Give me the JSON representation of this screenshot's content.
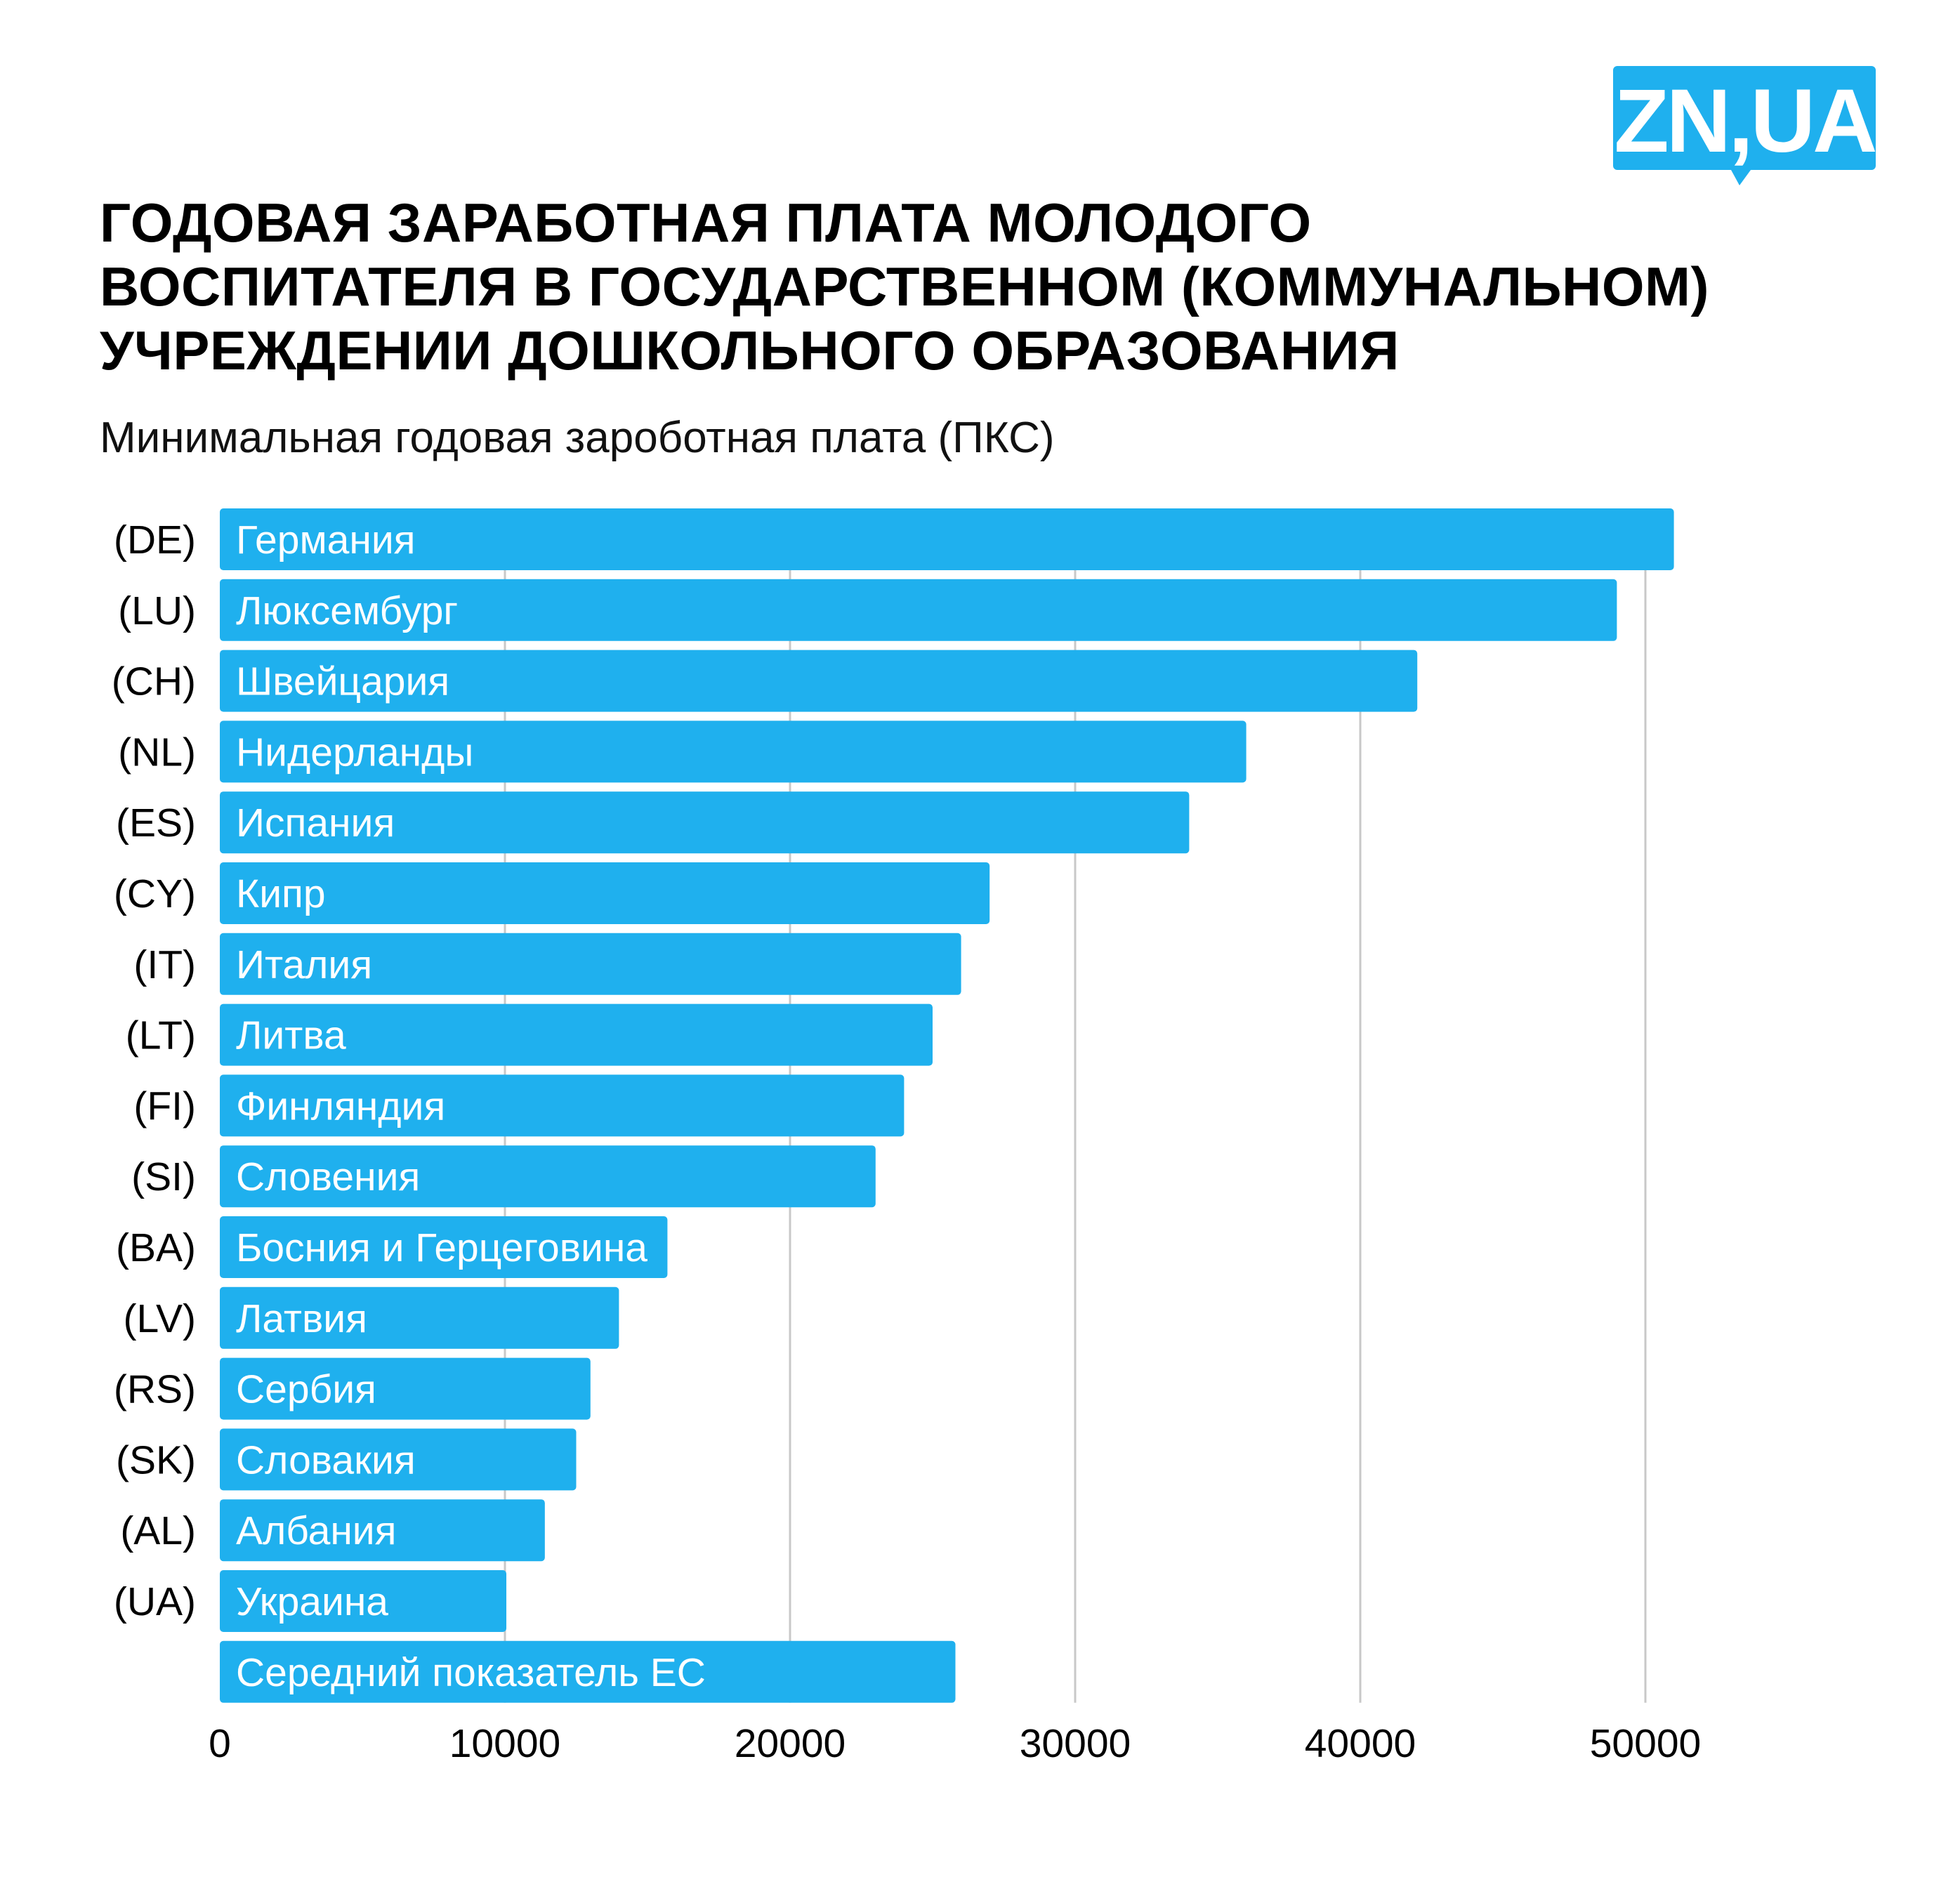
{
  "logo": {
    "text": "ZN,UA",
    "color": "#1fb0ee"
  },
  "title_lines": [
    "ГОДОВАЯ ЗАРАБОТНАЯ ПЛАТА МОЛОДОГО",
    "ВОСПИТАТЕЛЯ В ГОСУДАРСТВЕННОМ (КОММУНАЛЬНОМ)",
    "УЧРЕЖДЕНИИ ДОШКОЛЬНОГО ОБРАЗОВАНИЯ"
  ],
  "subtitle": "Минимальная годовая зароботная плата (ПКС)",
  "chart_data": {
    "type": "bar",
    "orientation": "horizontal",
    "title": "ГОДОВАЯ ЗАРАБОТНАЯ ПЛАТА МОЛОДОГО ВОСПИТАТЕЛЯ В ГОСУДАРСТВЕННОМ (КОММУНАЛЬНОМ) УЧРЕЖДЕНИИ ДОШКОЛЬНОГО ОБРАЗОВАНИЯ",
    "subtitle": "Минимальная годовая зароботная плата (ПКС)",
    "codes": [
      "(DE)",
      "(LU)",
      "(CH)",
      "(NL)",
      "(ES)",
      "(CY)",
      "(IT)",
      "(LT)",
      "(FI)",
      "(SI)",
      "(BA)",
      "(LV)",
      "(RS)",
      "(SK)",
      "(AL)",
      "(UA)",
      ""
    ],
    "categories": [
      "Германия",
      "Люксембург",
      "Швейцария",
      "Нидерланды",
      "Испания",
      "Кипр",
      "Италия",
      "Литва",
      "Финляндия",
      "Словения",
      "Босния и Герцеговина",
      "Латвия",
      "Сербия",
      "Словакия",
      "Албания",
      "Украина",
      "Середний показатель ЕС"
    ],
    "values": [
      51000,
      49000,
      42000,
      36000,
      34000,
      27000,
      26000,
      25000,
      24000,
      23000,
      15700,
      14000,
      13000,
      12500,
      11400,
      10050,
      25800
    ],
    "xlim": [
      0,
      57000
    ],
    "xticks": [
      0,
      10000,
      20000,
      30000,
      40000,
      50000
    ],
    "xtick_labels": [
      "0",
      "10000",
      "20000",
      "30000",
      "40000",
      "50000"
    ],
    "grid": "vertical",
    "bar_color": "#1fb0ee",
    "grid_color": "#c8c8c8"
  }
}
